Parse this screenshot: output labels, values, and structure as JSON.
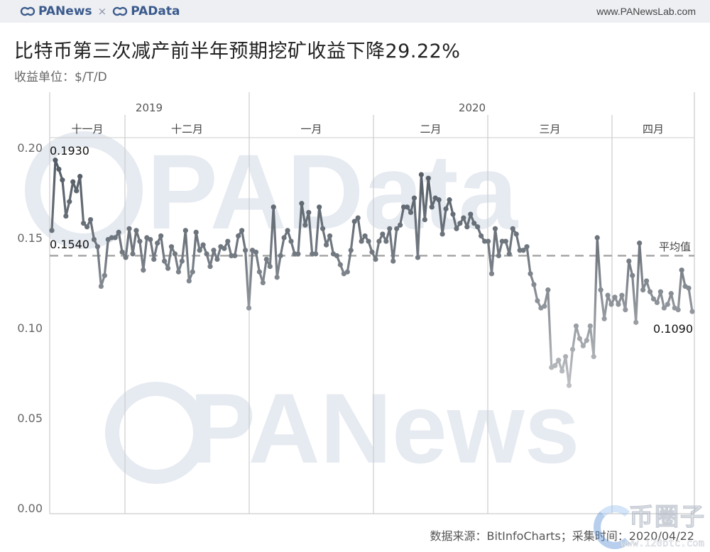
{
  "header": {
    "brand_left": "PANews",
    "brand_separator": "×",
    "brand_right": "PAData",
    "site_url": "www.PANewsLab.com"
  },
  "title": "比特币第三次减产前半年预期挖矿收益下降29.22%",
  "subtitle": "收益单位：$/T/D",
  "footer": {
    "source": "数据来源：BitInfoCharts；采集时间：2020/04/22"
  },
  "watermarks": {
    "upper": "PAData",
    "lower": "PANews",
    "corner_text": "币圈子",
    "corner_url": "www.120btc.com"
  },
  "colors": {
    "line_dark": "#4d5660",
    "line_light": "#c4c6c9",
    "average_line": "#a8a8a8",
    "grid": "#cccccc",
    "watermark": "#e6eaf1",
    "topbar_bg": "#eeeff3",
    "brand": "#3a5a8c"
  },
  "chart_data": {
    "type": "line",
    "title": "比特币第三次减产前半年预期挖矿收益下降29.22%",
    "subtitle": "收益单位：$/T/D",
    "xlabel": "",
    "ylabel": "$/T/D",
    "ylim": [
      0,
      0.2
    ],
    "yticks": [
      "0.00",
      "0.05",
      "0.10",
      "0.15",
      "0.20"
    ],
    "x_groups": [
      {
        "year": "2019",
        "months": [
          "十一月",
          "十二月"
        ]
      },
      {
        "year": "2020",
        "months": [
          "一月",
          "二月",
          "三月",
          "四月"
        ]
      }
    ],
    "month_labels": [
      "十一月",
      "十二月",
      "一月",
      "二月",
      "三月",
      "四月"
    ],
    "grid": false,
    "legend": "none",
    "annotations": [
      {
        "label": "0.1930",
        "note": "max / start peak"
      },
      {
        "label": "0.1540",
        "note": "start value"
      },
      {
        "label": "0.1090",
        "note": "end value"
      },
      {
        "label": "平均值",
        "note": "average reference line",
        "value": 0.14
      }
    ],
    "average": 0.14,
    "series": [
      {
        "name": "预期挖矿收益",
        "values": [
          0.154,
          0.193,
          0.188,
          0.182,
          0.162,
          0.17,
          0.181,
          0.176,
          0.184,
          0.158,
          0.156,
          0.16,
          0.149,
          0.145,
          0.123,
          0.129,
          0.149,
          0.15,
          0.15,
          0.153,
          0.142,
          0.139,
          0.155,
          0.141,
          0.154,
          0.148,
          0.132,
          0.15,
          0.149,
          0.138,
          0.147,
          0.151,
          0.137,
          0.133,
          0.145,
          0.141,
          0.131,
          0.137,
          0.154,
          0.126,
          0.131,
          0.153,
          0.143,
          0.146,
          0.141,
          0.134,
          0.143,
          0.138,
          0.145,
          0.144,
          0.148,
          0.14,
          0.14,
          0.151,
          0.154,
          0.143,
          0.111,
          0.143,
          0.142,
          0.131,
          0.125,
          0.138,
          0.134,
          0.167,
          0.128,
          0.14,
          0.15,
          0.154,
          0.148,
          0.141,
          0.141,
          0.169,
          0.157,
          0.164,
          0.141,
          0.141,
          0.167,
          0.155,
          0.146,
          0.151,
          0.141,
          0.14,
          0.135,
          0.13,
          0.131,
          0.143,
          0.159,
          0.161,
          0.148,
          0.151,
          0.148,
          0.142,
          0.138,
          0.148,
          0.152,
          0.148,
          0.155,
          0.137,
          0.155,
          0.157,
          0.167,
          0.167,
          0.164,
          0.172,
          0.139,
          0.185,
          0.16,
          0.183,
          0.167,
          0.172,
          0.171,
          0.152,
          0.166,
          0.171,
          0.163,
          0.155,
          0.158,
          0.161,
          0.156,
          0.163,
          0.158,
          0.156,
          0.151,
          0.148,
          0.148,
          0.13,
          0.155,
          0.14,
          0.148,
          0.148,
          0.141,
          0.155,
          0.152,
          0.143,
          0.143,
          0.145,
          0.13,
          0.124,
          0.115,
          0.111,
          0.112,
          0.121,
          0.078,
          0.079,
          0.082,
          0.076,
          0.084,
          0.068,
          0.088,
          0.101,
          0.094,
          0.09,
          0.093,
          0.101,
          0.084,
          0.15,
          0.121,
          0.105,
          0.118,
          0.113,
          0.117,
          0.113,
          0.118,
          0.11,
          0.137,
          0.129,
          0.103,
          0.147,
          0.121,
          0.126,
          0.12,
          0.116,
          0.114,
          0.12,
          0.111,
          0.113,
          0.119,
          0.111,
          0.11,
          0.132,
          0.123,
          0.122,
          0.109
        ]
      }
    ]
  }
}
